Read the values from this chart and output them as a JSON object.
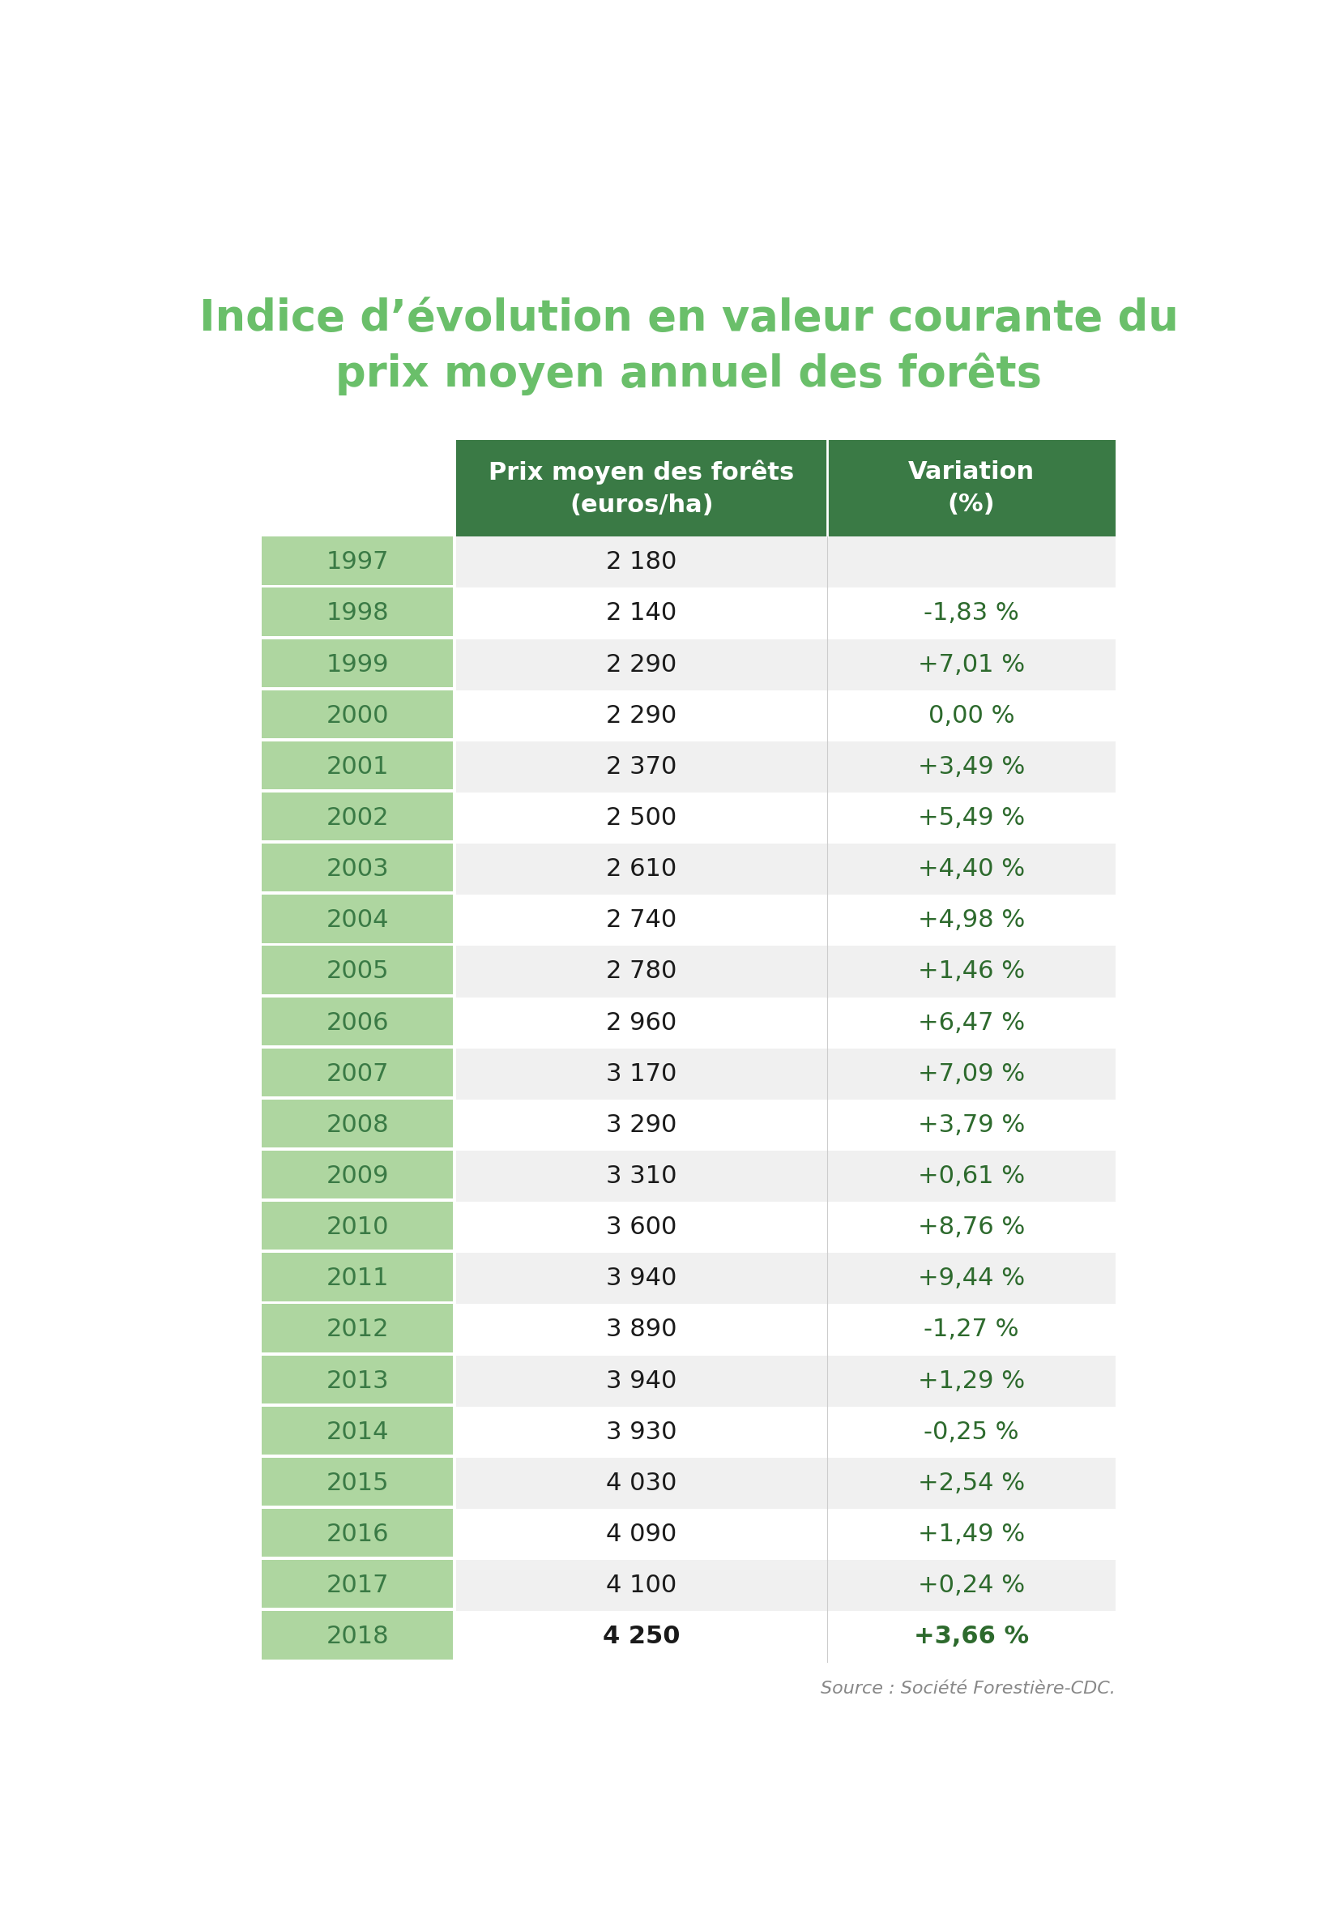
{
  "title_line1": "Indice d’évolution en valeur courante du",
  "title_line2": "prix moyen annuel des forêts",
  "title_color": "#6abf6a",
  "header_bg_color": "#3a7a45",
  "header_text_color": "#ffffff",
  "year_bg_color": "#aed6a0",
  "year_text_color": "#3a7a45",
  "row_bg_even": "#f0f0f0",
  "row_bg_odd": "#ffffff",
  "price_text_color": "#1a1a1a",
  "variation_color": "#2d6a2d",
  "source_text": "Source : Société Forestière-CDC.",
  "source_color": "#888888",
  "col_header_1": "Prix moyen des forêts\n(euros/ha)",
  "col_header_2": "Variation\n(%)",
  "rows": [
    {
      "year": "1997",
      "price": "2 180",
      "variation": ""
    },
    {
      "year": "1998",
      "price": "2 140",
      "variation": "-1,83 %"
    },
    {
      "year": "1999",
      "price": "2 290",
      "variation": "+7,01 %"
    },
    {
      "year": "2000",
      "price": "2 290",
      "variation": "0,00 %"
    },
    {
      "year": "2001",
      "price": "2 370",
      "variation": "+3,49 %"
    },
    {
      "year": "2002",
      "price": "2 500",
      "variation": "+5,49 %"
    },
    {
      "year": "2003",
      "price": "2 610",
      "variation": "+4,40 %"
    },
    {
      "year": "2004",
      "price": "2 740",
      "variation": "+4,98 %"
    },
    {
      "year": "2005",
      "price": "2 780",
      "variation": "+1,46 %"
    },
    {
      "year": "2006",
      "price": "2 960",
      "variation": "+6,47 %"
    },
    {
      "year": "2007",
      "price": "3 170",
      "variation": "+7,09 %"
    },
    {
      "year": "2008",
      "price": "3 290",
      "variation": "+3,79 %"
    },
    {
      "year": "2009",
      "price": "3 310",
      "variation": "+0,61 %"
    },
    {
      "year": "2010",
      "price": "3 600",
      "variation": "+8,76 %"
    },
    {
      "year": "2011",
      "price": "3 940",
      "variation": "+9,44 %"
    },
    {
      "year": "2012",
      "price": "3 890",
      "variation": "-1,27 %"
    },
    {
      "year": "2013",
      "price": "3 940",
      "variation": "+1,29 %"
    },
    {
      "year": "2014",
      "price": "3 930",
      "variation": "-0,25 %"
    },
    {
      "year": "2015",
      "price": "4 030",
      "variation": "+2,54 %"
    },
    {
      "year": "2016",
      "price": "4 090",
      "variation": "+1,49 %"
    },
    {
      "year": "2017",
      "price": "4 100",
      "variation": "+0,24 %"
    },
    {
      "year": "2018",
      "price": "4 250",
      "variation": "+3,66 %"
    }
  ]
}
